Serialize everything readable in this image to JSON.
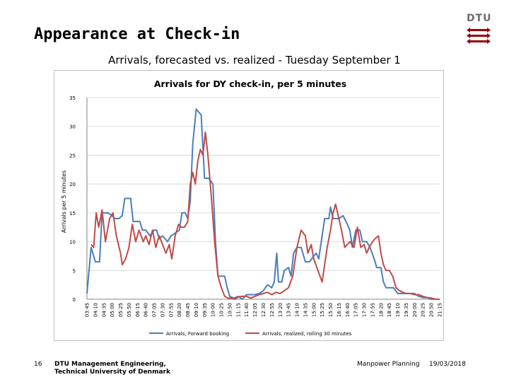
{
  "slide": {
    "title": "Appearance at Check-in",
    "subtitle": "Arrivals, forecasted vs. realized - Tuesday September 1",
    "logo_text": "DTU"
  },
  "footer": {
    "page_number": "16",
    "dept_line1": "DTU Management Engineering,",
    "dept_line2": "Technical University of Denmark",
    "topic": "Manpower Planning",
    "date": "19/03/2018"
  },
  "colors": {
    "forecast": "#4a7ebb",
    "realized": "#be4b48",
    "grid": "#d9d9d9",
    "brand": "#990000"
  },
  "chart_data": {
    "type": "line",
    "title": "Arrivals for DY check-in, per 5 minutes",
    "xlabel": "",
    "ylabel": "Arrivals per 5 minutes",
    "ylim": [
      0,
      35
    ],
    "yticks": [
      "0",
      "5",
      "10",
      "15",
      "20",
      "25",
      "30",
      "35"
    ],
    "grid": true,
    "legend_position": "bottom",
    "x_tick_labels": [
      "03:45",
      "04:10",
      "04:35",
      "05:00",
      "05:25",
      "05:50",
      "06:15",
      "06:40",
      "07:05",
      "07:30",
      "07:55",
      "08:20",
      "08:45",
      "09:10",
      "09:35",
      "10:00",
      "10:25",
      "10:50",
      "11:15",
      "11:40",
      "12:05",
      "12:30",
      "12:55",
      "13:20",
      "13:45",
      "14:10",
      "14:35",
      "15:00",
      "15:25",
      "15:50",
      "16:15",
      "16:40",
      "17:05",
      "17:30",
      "17:55",
      "18:20",
      "18:45",
      "19:10",
      "19:35",
      "20:00",
      "20:25",
      "20:50",
      "21:15"
    ],
    "series": [
      {
        "name": "Arrivals, Forward booking",
        "color": "#4a7ebb",
        "points": [
          [
            0,
            1
          ],
          [
            0.5,
            9
          ],
          [
            1,
            6.5
          ],
          [
            1.5,
            6.5
          ],
          [
            1.8,
            15
          ],
          [
            2.5,
            15
          ],
          [
            3,
            14.5
          ],
          [
            3.3,
            14
          ],
          [
            3.8,
            14
          ],
          [
            4.2,
            14.5
          ],
          [
            4.5,
            17.5
          ],
          [
            5.2,
            17.5
          ],
          [
            5.5,
            13.5
          ],
          [
            6,
            13.5
          ],
          [
            6.3,
            13.5
          ],
          [
            6.6,
            12
          ],
          [
            7,
            12
          ],
          [
            7.5,
            11
          ],
          [
            8,
            12
          ],
          [
            8.3,
            12
          ],
          [
            8.6,
            10.5
          ],
          [
            9,
            11
          ],
          [
            9.3,
            10.5
          ],
          [
            9.6,
            10
          ],
          [
            10,
            11
          ],
          [
            10.5,
            11.5
          ],
          [
            11,
            12
          ],
          [
            11.3,
            15
          ],
          [
            11.7,
            15
          ],
          [
            12,
            14
          ],
          [
            12.3,
            17
          ],
          [
            12.6,
            27
          ],
          [
            13,
            33
          ],
          [
            13.3,
            32.5
          ],
          [
            13.6,
            32
          ],
          [
            14,
            21
          ],
          [
            14.5,
            21
          ],
          [
            15,
            20
          ],
          [
            15.3,
            10
          ],
          [
            15.6,
            4
          ],
          [
            16,
            4
          ],
          [
            16.4,
            4
          ],
          [
            16.7,
            2
          ],
          [
            17,
            0.5
          ],
          [
            17.5,
            0.2
          ],
          [
            18,
            0.5
          ],
          [
            18.5,
            0
          ],
          [
            19,
            0.8
          ],
          [
            20,
            0.8
          ],
          [
            20.5,
            1
          ],
          [
            21,
            1.5
          ],
          [
            21.5,
            2.5
          ],
          [
            22,
            2
          ],
          [
            22.3,
            3
          ],
          [
            22.6,
            8
          ],
          [
            22.8,
            3
          ],
          [
            23.2,
            3
          ],
          [
            23.5,
            5
          ],
          [
            24,
            5.5
          ],
          [
            24.3,
            4
          ],
          [
            24.6,
            8
          ],
          [
            25,
            9
          ],
          [
            25.5,
            9
          ],
          [
            26,
            6.5
          ],
          [
            26.5,
            6.5
          ],
          [
            27,
            7.5
          ],
          [
            27.3,
            8
          ],
          [
            27.6,
            7
          ],
          [
            28.3,
            14
          ],
          [
            28.8,
            14
          ],
          [
            29,
            16
          ],
          [
            29.3,
            14
          ],
          [
            29.6,
            14
          ],
          [
            30,
            14
          ],
          [
            30.5,
            14.5
          ],
          [
            31,
            13
          ],
          [
            31.3,
            12
          ],
          [
            31.6,
            9
          ],
          [
            32,
            12
          ],
          [
            32.5,
            12
          ],
          [
            32.8,
            10
          ],
          [
            33.3,
            10
          ],
          [
            33.7,
            9
          ],
          [
            34.2,
            7
          ],
          [
            34.5,
            5.5
          ],
          [
            35,
            5.5
          ],
          [
            35.3,
            3
          ],
          [
            35.6,
            2
          ],
          [
            36,
            2
          ],
          [
            36.5,
            2
          ],
          [
            37,
            1
          ],
          [
            37.5,
            1
          ],
          [
            38,
            1
          ],
          [
            38.5,
            1
          ],
          [
            39,
            1
          ],
          [
            39.5,
            0.5
          ],
          [
            40,
            0.3
          ],
          [
            40.5,
            0.3
          ],
          [
            41,
            0
          ],
          [
            41.5,
            0
          ],
          [
            42,
            0
          ]
        ]
      },
      {
        "name": "Arrivals, realized, rolling 30 minutes",
        "color": "#be4b48",
        "points": [
          [
            0.5,
            9.5
          ],
          [
            0.8,
            9
          ],
          [
            1.1,
            15
          ],
          [
            1.4,
            12.5
          ],
          [
            1.8,
            15.5
          ],
          [
            2.2,
            10
          ],
          [
            2.7,
            14
          ],
          [
            3.1,
            15
          ],
          [
            3.5,
            11
          ],
          [
            4,
            8
          ],
          [
            4.2,
            6
          ],
          [
            4.6,
            7
          ],
          [
            5,
            9
          ],
          [
            5.4,
            13
          ],
          [
            5.8,
            10
          ],
          [
            6.2,
            12
          ],
          [
            6.7,
            10
          ],
          [
            7,
            11
          ],
          [
            7.4,
            9.5
          ],
          [
            7.8,
            12
          ],
          [
            8.2,
            9
          ],
          [
            8.6,
            11
          ],
          [
            9,
            9.5
          ],
          [
            9.4,
            8
          ],
          [
            9.8,
            9.5
          ],
          [
            10.1,
            7
          ],
          [
            10.5,
            11
          ],
          [
            10.9,
            13
          ],
          [
            11.2,
            12.5
          ],
          [
            11.6,
            12.5
          ],
          [
            12,
            13.5
          ],
          [
            12.3,
            20
          ],
          [
            12.6,
            22
          ],
          [
            12.9,
            20
          ],
          [
            13.2,
            24
          ],
          [
            13.5,
            26
          ],
          [
            13.8,
            25
          ],
          [
            14.1,
            29
          ],
          [
            14.4,
            25
          ],
          [
            14.8,
            18
          ],
          [
            15.2,
            10
          ],
          [
            15.6,
            4
          ],
          [
            16,
            2
          ],
          [
            16.4,
            0.5
          ],
          [
            16.8,
            0.2
          ],
          [
            17.2,
            0.2
          ],
          [
            17.6,
            0
          ],
          [
            18,
            0.4
          ],
          [
            18.5,
            0.5
          ],
          [
            19,
            0.5
          ],
          [
            19.5,
            0.2
          ],
          [
            20,
            0.5
          ],
          [
            20.5,
            0.8
          ],
          [
            21,
            1
          ],
          [
            21.5,
            1.2
          ],
          [
            22,
            0.8
          ],
          [
            22.5,
            1.2
          ],
          [
            23,
            1
          ],
          [
            23.5,
            1.5
          ],
          [
            24,
            2
          ],
          [
            24.5,
            4
          ],
          [
            25,
            9
          ],
          [
            25.5,
            12
          ],
          [
            26,
            11
          ],
          [
            26.3,
            8
          ],
          [
            26.7,
            9.5
          ],
          [
            27,
            7
          ],
          [
            27.5,
            5
          ],
          [
            28,
            3
          ],
          [
            28.3,
            6
          ],
          [
            28.6,
            9
          ],
          [
            29,
            12
          ],
          [
            29.3,
            15
          ],
          [
            29.6,
            16.5
          ],
          [
            30,
            14
          ],
          [
            30.3,
            12
          ],
          [
            30.7,
            9
          ],
          [
            31,
            9.5
          ],
          [
            31.3,
            10
          ],
          [
            31.8,
            9
          ],
          [
            32.2,
            12.5
          ],
          [
            32.6,
            9
          ],
          [
            33,
            9.5
          ],
          [
            33.3,
            8
          ],
          [
            33.6,
            9
          ],
          [
            34,
            10
          ],
          [
            34.3,
            10.5
          ],
          [
            34.7,
            11
          ],
          [
            35,
            8
          ],
          [
            35.3,
            6
          ],
          [
            35.6,
            5
          ],
          [
            36,
            5
          ],
          [
            36.4,
            4
          ],
          [
            36.8,
            2
          ],
          [
            37.2,
            1.5
          ],
          [
            37.6,
            1.2
          ],
          [
            38,
            1
          ],
          [
            38.5,
            1
          ],
          [
            39,
            0.8
          ],
          [
            39.5,
            0.8
          ],
          [
            40,
            0.5
          ],
          [
            40.5,
            0.3
          ],
          [
            41,
            0.2
          ],
          [
            41.5,
            0
          ],
          [
            42,
            0
          ]
        ]
      }
    ]
  }
}
